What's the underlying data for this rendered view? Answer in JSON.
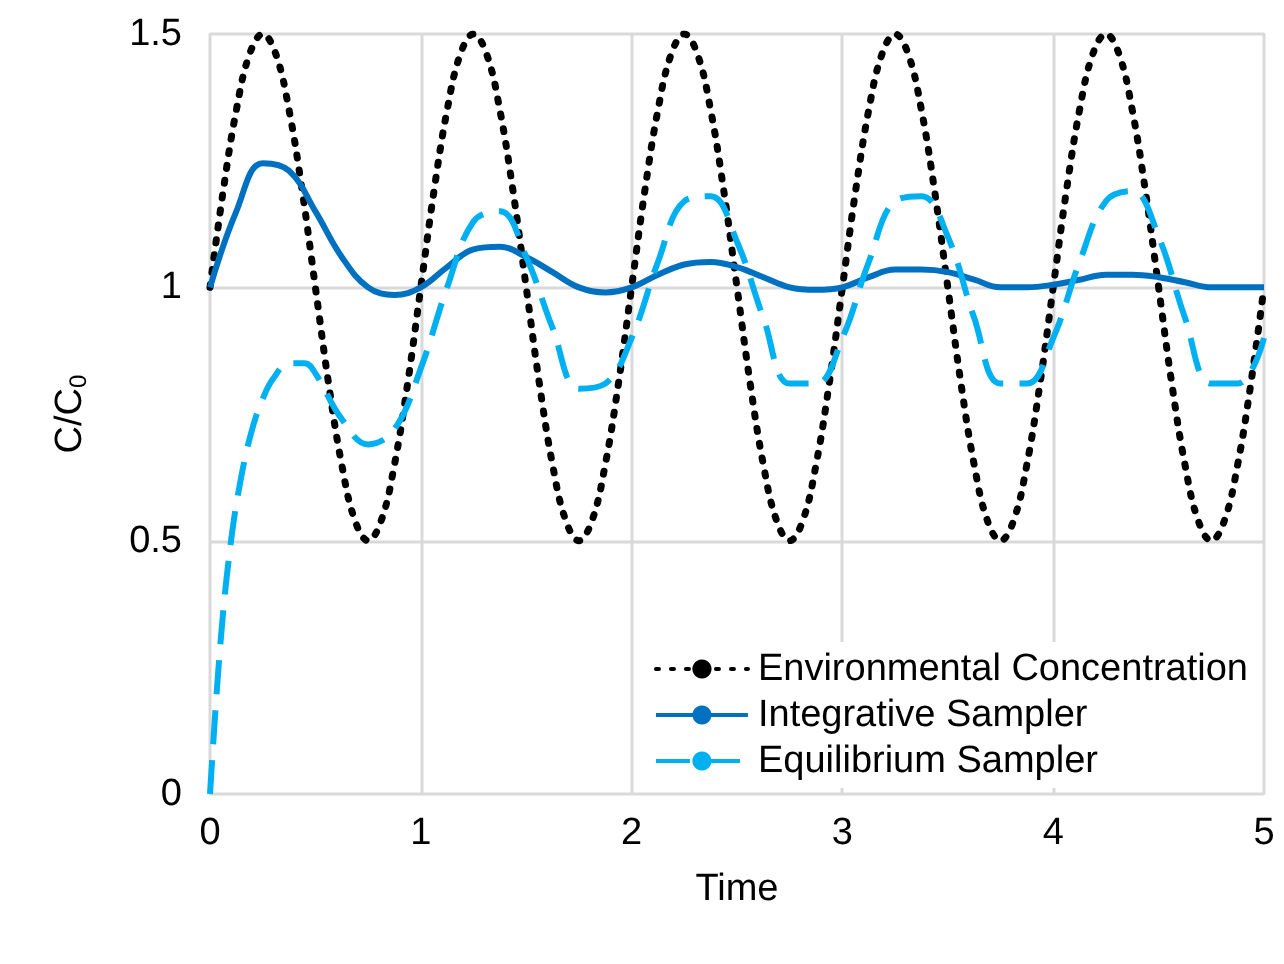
{
  "chart_data": {
    "type": "line",
    "xlabel": "Time",
    "ylabel": "C/C$_{0}$",
    "xlim": [
      0,
      5
    ],
    "xticks": [
      0,
      1,
      2,
      3,
      4,
      5
    ],
    "ylim": [
      0,
      1.5
    ],
    "yticks": [
      0,
      0.5,
      1,
      1.5
    ],
    "grid": true,
    "legend": "bottom right",
    "marker": "none",
    "series": [
      {
        "name": "Environmental Concentration",
        "color": "#000000",
        "line_style": "dotted",
        "x": [
          0,
          0.0625,
          0.125,
          0.1875,
          0.25,
          0.3125,
          0.375,
          0.4375,
          0.5,
          0.5625,
          0.625,
          0.6875,
          0.75,
          0.8125,
          0.875,
          0.9375,
          1,
          1.0625,
          1.125,
          1.1875,
          1.25,
          1.3125,
          1.375,
          1.4375,
          1.5,
          1.5625,
          1.625,
          1.6875,
          1.75,
          1.8125,
          1.875,
          1.9375,
          2,
          2.0625,
          2.125,
          2.1875,
          2.25,
          2.3125,
          2.375,
          2.4375,
          2.5,
          2.5625,
          2.625,
          2.6875,
          2.75,
          2.8125,
          2.875,
          2.9375,
          3,
          3.0625,
          3.125,
          3.1875,
          3.25,
          3.3125,
          3.375,
          3.4375,
          3.5,
          3.5625,
          3.625,
          3.6875,
          3.75,
          3.8125,
          3.875,
          3.9375,
          4,
          4.0625,
          4.125,
          4.1875,
          4.25,
          4.3125,
          4.375,
          4.4375,
          4.5,
          4.5625,
          4.625,
          4.6875,
          4.75,
          4.8125,
          4.875,
          4.9375,
          5
        ],
        "values": [
          1,
          1.19,
          1.35,
          1.46,
          1.5,
          1.46,
          1.35,
          1.19,
          1,
          0.81,
          0.65,
          0.54,
          0.5,
          0.54,
          0.65,
          0.81,
          1,
          1.19,
          1.35,
          1.46,
          1.5,
          1.46,
          1.35,
          1.19,
          1,
          0.81,
          0.65,
          0.54,
          0.5,
          0.54,
          0.65,
          0.81,
          1,
          1.19,
          1.35,
          1.46,
          1.5,
          1.46,
          1.35,
          1.19,
          1,
          0.81,
          0.65,
          0.54,
          0.5,
          0.54,
          0.65,
          0.81,
          1,
          1.19,
          1.35,
          1.46,
          1.5,
          1.46,
          1.35,
          1.19,
          1,
          0.81,
          0.65,
          0.54,
          0.5,
          0.54,
          0.65,
          0.81,
          1,
          1.19,
          1.35,
          1.46,
          1.5,
          1.46,
          1.35,
          1.19,
          1,
          0.81,
          0.65,
          0.54,
          0.5,
          0.54,
          0.65,
          0.81,
          1
        ]
      },
      {
        "name": "Integrative Sampler",
        "color": "#0070c0",
        "line_style": "solid",
        "x": [
          0,
          0.125,
          0.25,
          0.375,
          0.5,
          0.625,
          0.75,
          0.875,
          1,
          1.125,
          1.25,
          1.375,
          1.5,
          1.625,
          1.75,
          1.875,
          2,
          2.125,
          2.25,
          2.375,
          2.5,
          2.625,
          2.75,
          2.875,
          3,
          3.125,
          3.25,
          3.375,
          3.5,
          3.625,
          3.75,
          3.875,
          4,
          4.125,
          4.25,
          4.375,
          4.5,
          4.625,
          4.75,
          4.875,
          5
        ],
        "values": [
          1,
          1.15,
          1.245,
          1.23,
          1.15,
          1.06,
          1.0,
          0.985,
          1.0,
          1.04,
          1.075,
          1.08,
          1.06,
          1.03,
          1.0,
          0.99,
          1.0,
          1.025,
          1.045,
          1.05,
          1.04,
          1.02,
          1.0,
          0.995,
          1.0,
          1.02,
          1.035,
          1.035,
          1.03,
          1.015,
          1.0,
          1.0,
          1.005,
          1.015,
          1.025,
          1.025,
          1.02,
          1.01,
          1.0,
          1.0,
          1.0
        ]
      },
      {
        "name": "Equilibrium Sampler",
        "color": "#00b0f0",
        "line_style": "dashed",
        "x": [
          0,
          0.05,
          0.1,
          0.15,
          0.2,
          0.25,
          0.3,
          0.375,
          0.45,
          0.5,
          0.625,
          0.75,
          0.875,
          1,
          1.125,
          1.25,
          1.375,
          1.5,
          1.625,
          1.75,
          1.875,
          2,
          2.125,
          2.25,
          2.375,
          2.5,
          2.625,
          2.75,
          2.875,
          3,
          3.125,
          3.25,
          3.375,
          3.5,
          3.625,
          3.75,
          3.875,
          4,
          4.125,
          4.25,
          4.375,
          4.5,
          4.625,
          4.75,
          4.875,
          5
        ],
        "values": [
          0,
          0.3,
          0.5,
          0.63,
          0.72,
          0.78,
          0.82,
          0.85,
          0.85,
          0.83,
          0.74,
          0.69,
          0.72,
          0.84,
          1.0,
          1.13,
          1.15,
          1.06,
          0.92,
          0.8,
          0.81,
          0.9,
          1.05,
          1.17,
          1.18,
          1.09,
          0.94,
          0.81,
          0.81,
          0.9,
          1.05,
          1.17,
          1.18,
          1.1,
          0.94,
          0.81,
          0.81,
          0.9,
          1.05,
          1.17,
          1.19,
          1.1,
          0.94,
          0.81,
          0.81,
          0.9
        ]
      }
    ]
  }
}
